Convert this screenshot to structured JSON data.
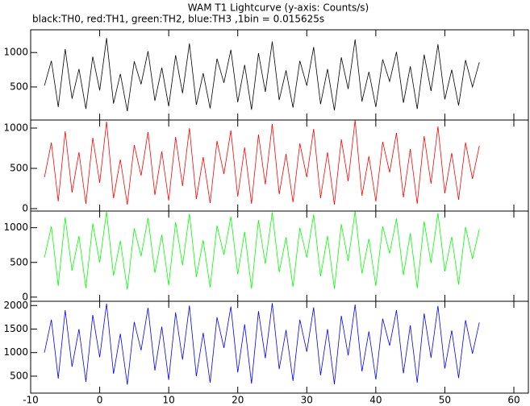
{
  "chart_data": [
    {
      "type": "line",
      "title": "WAM T1 Lightcurve (y-axis: Counts/s)",
      "subtitle": "black:TH0, red:TH1, green:TH2, blue:TH3 ,1bin = 0.015625s",
      "x": [
        -8,
        -7,
        -6,
        -5,
        -4,
        -3,
        -2,
        -1,
        0,
        1,
        2,
        3,
        4,
        5,
        6,
        7,
        8,
        9,
        10,
        11,
        12,
        13,
        14,
        15,
        16,
        17,
        18,
        19,
        20,
        21,
        22,
        23,
        24,
        25,
        26,
        27,
        28,
        29,
        30,
        31,
        32,
        33,
        34,
        35,
        36,
        37,
        38,
        39,
        40,
        41,
        42,
        43,
        44,
        45,
        46,
        47,
        48,
        49,
        50,
        51,
        52,
        53,
        54,
        55
      ],
      "color": "#000000",
      "ylim": [
        20,
        1330
      ],
      "yticks": [
        500,
        1000
      ],
      "values": [
        520,
        880,
        210,
        1050,
        330,
        760,
        180,
        940,
        450,
        1210,
        260,
        690,
        150,
        870,
        540,
        1020,
        300,
        780,
        220,
        960,
        410,
        1130,
        240,
        700,
        190,
        910,
        560,
        1040,
        280,
        820,
        170,
        990,
        430,
        1160,
        310,
        740,
        200,
        880,
        520,
        1080,
        250,
        760,
        160,
        930,
        470,
        1190,
        290,
        720,
        210,
        900,
        580,
        1010,
        270,
        800,
        180,
        970,
        440,
        1120,
        320,
        750,
        230,
        890,
        500,
        860
      ]
    },
    {
      "type": "line",
      "x": [
        -8,
        -7,
        -6,
        -5,
        -4,
        -3,
        -2,
        -1,
        0,
        1,
        2,
        3,
        4,
        5,
        6,
        7,
        8,
        9,
        10,
        11,
        12,
        13,
        14,
        15,
        16,
        17,
        18,
        19,
        20,
        21,
        22,
        23,
        24,
        25,
        26,
        27,
        28,
        29,
        30,
        31,
        32,
        33,
        34,
        35,
        36,
        37,
        38,
        39,
        40,
        41,
        42,
        43,
        44,
        45,
        46,
        47,
        48,
        49,
        50,
        51,
        52,
        53,
        54,
        55
      ],
      "color": "#ff0000",
      "ylim": [
        -30,
        1100
      ],
      "yticks": [
        0,
        500,
        1000
      ],
      "values": [
        390,
        820,
        90,
        960,
        200,
        700,
        60,
        880,
        320,
        1080,
        130,
        610,
        50,
        790,
        410,
        950,
        170,
        710,
        100,
        890,
        280,
        1000,
        120,
        640,
        70,
        840,
        430,
        970,
        150,
        760,
        60,
        920,
        300,
        1050,
        180,
        680,
        80,
        810,
        390,
        990,
        130,
        700,
        50,
        860,
        340,
        1100,
        160,
        650,
        90,
        830,
        450,
        940,
        140,
        740,
        60,
        900,
        310,
        1020,
        190,
        690,
        110,
        820,
        370,
        780
      ]
    },
    {
      "type": "line",
      "x": [
        -8,
        -7,
        -6,
        -5,
        -4,
        -3,
        -2,
        -1,
        0,
        1,
        2,
        3,
        4,
        5,
        6,
        7,
        8,
        9,
        10,
        11,
        12,
        13,
        14,
        15,
        16,
        17,
        18,
        19,
        20,
        21,
        22,
        23,
        24,
        25,
        26,
        27,
        28,
        29,
        30,
        31,
        32,
        33,
        34,
        35,
        36,
        37,
        38,
        39,
        40,
        41,
        42,
        43,
        44,
        45,
        46,
        47,
        48,
        49,
        50,
        51,
        52,
        53,
        54,
        55
      ],
      "color": "#00ff00",
      "ylim": [
        -60,
        1240
      ],
      "yticks": [
        0,
        500,
        1000
      ],
      "values": [
        570,
        1020,
        160,
        1150,
        380,
        880,
        130,
        1060,
        500,
        1230,
        310,
        810,
        110,
        990,
        590,
        1140,
        350,
        900,
        170,
        1080,
        460,
        1200,
        290,
        820,
        140,
        1030,
        610,
        1160,
        330,
        940,
        120,
        1110,
        480,
        1220,
        360,
        860,
        150,
        1000,
        570,
        1190,
        300,
        880,
        120,
        1050,
        520,
        1240,
        340,
        840,
        160,
        1020,
        630,
        1130,
        320,
        920,
        130,
        1090,
        490,
        1210,
        370,
        870,
        180,
        1010,
        550,
        980
      ]
    },
    {
      "type": "line",
      "x": [
        -8,
        -7,
        -6,
        -5,
        -4,
        -3,
        -2,
        -1,
        0,
        1,
        2,
        3,
        4,
        5,
        6,
        7,
        8,
        9,
        10,
        11,
        12,
        13,
        14,
        15,
        16,
        17,
        18,
        19,
        20,
        21,
        22,
        23,
        24,
        25,
        26,
        27,
        28,
        29,
        30,
        31,
        32,
        33,
        34,
        35,
        36,
        37,
        38,
        39,
        40,
        41,
        42,
        43,
        44,
        45,
        46,
        47,
        48,
        49,
        50,
        51,
        52,
        53,
        54,
        55
      ],
      "color": "#0000ff",
      "ylim": [
        140,
        2090
      ],
      "yticks": [
        500,
        1000,
        1500,
        2000
      ],
      "xlim": [
        -10,
        60
      ],
      "xticks": [
        -10,
        0,
        10,
        20,
        30,
        40,
        50,
        60
      ],
      "values": [
        1000,
        1700,
        450,
        1900,
        700,
        1500,
        380,
        1800,
        900,
        2040,
        550,
        1400,
        320,
        1650,
        1050,
        1950,
        620,
        1550,
        420,
        1850,
        850,
        2000,
        500,
        1420,
        360,
        1750,
        1100,
        1980,
        580,
        1600,
        340,
        1880,
        880,
        2050,
        650,
        1480,
        400,
        1700,
        1020,
        1960,
        520,
        1500,
        330,
        1780,
        940,
        2020,
        600,
        1450,
        430,
        1720,
        1150,
        1900,
        560,
        1580,
        360,
        1830,
        890,
        1990,
        660,
        1470,
        460,
        1690,
        980,
        1640
      ]
    }
  ]
}
